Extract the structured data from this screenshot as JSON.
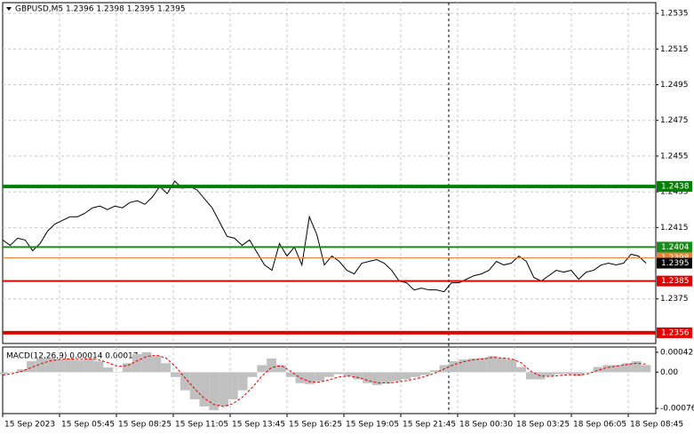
{
  "chart_data": [
    {
      "type": "line",
      "title": "GBPUSD,M5 1.2396 1.2398 1.2395 1.2395",
      "time_labels": [
        "15 Sep 2023",
        "15 Sep 05:45",
        "15 Sep 08:25",
        "15 Sep 11:05",
        "15 Sep 13:45",
        "15 Sep 16:25",
        "15 Sep 19:05",
        "15 Sep 21:45",
        "18 Sep 00:30",
        "18 Sep 03:25",
        "18 Sep 06:05",
        "18 Sep 08:45"
      ],
      "color": "#000000",
      "values": [
        1.2408,
        1.2405,
        1.2409,
        1.2408,
        1.2402,
        1.2406,
        1.2413,
        1.2417,
        1.2419,
        1.2421,
        1.2421,
        1.2423,
        1.2426,
        1.2427,
        1.2425,
        1.2427,
        1.2426,
        1.2429,
        1.243,
        1.2428,
        1.2432,
        1.2438,
        1.2434,
        1.2441,
        1.2437,
        1.2438,
        1.2436,
        1.2431,
        1.2426,
        1.2418,
        1.241,
        1.2409,
        1.2405,
        1.2408,
        1.2401,
        1.2394,
        1.2391,
        1.2406,
        1.2399,
        1.2404,
        1.2394,
        1.2421,
        1.2411,
        1.2394,
        1.2399,
        1.2396,
        1.2391,
        1.2389,
        1.2395,
        1.2396,
        1.2397,
        1.2395,
        1.2391,
        1.2385,
        1.2384,
        1.238,
        1.2381,
        1.238,
        1.238,
        1.2379,
        1.2384,
        1.2384,
        1.2386,
        1.2388,
        1.2389,
        1.2391,
        1.2396,
        1.2394,
        1.2395,
        1.2399,
        1.2396,
        1.2387,
        1.2385,
        1.2388,
        1.2391,
        1.239,
        1.2391,
        1.2386,
        1.239,
        1.2391,
        1.2394,
        1.2395,
        1.2394,
        1.2395,
        1.24,
        1.2399,
        1.2395
      ],
      "ylim": [
        1.235,
        1.2541
      ],
      "yticks": [
        1.2535,
        1.2515,
        1.2495,
        1.2475,
        1.2455,
        1.2435,
        1.2415,
        1.2375
      ],
      "grid": true,
      "levels": [
        {
          "value": 1.2438,
          "color": "#008000",
          "style": "bold"
        },
        {
          "value": 1.2404,
          "color": "#1a8a1a",
          "style": "normal"
        },
        {
          "value": 1.2398,
          "color": "#e8823a",
          "style": "thin"
        },
        {
          "value": 1.2385,
          "color": "#e00000",
          "style": "normal"
        },
        {
          "value": 1.2356,
          "color": "#e00000",
          "style": "bold"
        }
      ],
      "last": 1.2395
    },
    {
      "type": "macd",
      "title": "MACD(12,26,9) 0.00014 0.00017",
      "series": [
        {
          "name": "MACD",
          "color": "#c0c0c0",
          "values": [
            -4e-05,
            0,
            6e-05,
            0.00023,
            0.00029,
            0.0003,
            0.00027,
            0.00029,
            0.00025,
            0.00029,
            0.00023,
            0.0001,
            0,
            0.00019,
            0.00038,
            0.00042,
            0.00034,
            0.00019,
            -0.0001,
            -0.00038,
            -0.00057,
            -0.00072,
            -0.0008,
            -0.00072,
            -0.00057,
            -0.00038,
            -0.0001,
            0.00015,
            0.00029,
            0.00015,
            -0.0001,
            -0.00023,
            -0.00025,
            -0.00019,
            -0.0001,
            -4e-05,
            -8e-05,
            -0.00015,
            -0.00023,
            -0.00027,
            -0.00023,
            -0.00019,
            -0.00015,
            -0.0001,
            -6e-05,
            4e-05,
            0.00015,
            0.00023,
            0.00027,
            0.00029,
            0.0003,
            0.00034,
            0.0003,
            0.00027,
            0.00011,
            -0.00015,
            -0.00015,
            -8e-05,
            -4e-05,
            -4e-05,
            -8e-05,
            0,
            0.00011,
            0.00015,
            0.00015,
            0.00019,
            0.00023,
            0.00015
          ]
        },
        {
          "name": "Signal",
          "color": "#e00000",
          "values": [
            -6e-05,
            -3e-05,
            2e-05,
            0.0001,
            0.00018,
            0.00024,
            0.00027,
            0.00028,
            0.00027,
            0.00028,
            0.00026,
            0.0002,
            0.00012,
            0.00014,
            0.00024,
            0.00033,
            0.00036,
            0.0003,
            0.00012,
            -0.00012,
            -0.00035,
            -0.00055,
            -0.00068,
            -0.00072,
            -0.00066,
            -0.00052,
            -0.00032,
            -8e-05,
            0.0001,
            0.00014,
            2e-05,
            -0.00012,
            -0.0002,
            -0.00021,
            -0.00016,
            -0.0001,
            -8e-05,
            -0.00011,
            -0.00017,
            -0.00022,
            -0.00023,
            -0.00021,
            -0.00018,
            -0.00014,
            -9e-05,
            -2e-05,
            7e-05,
            0.00016,
            0.00022,
            0.00026,
            0.00028,
            0.00031,
            0.0003,
            0.00028,
            0.0002,
            2e-05,
            -8e-05,
            -9e-05,
            -7e-05,
            -5e-05,
            -6e-05,
            -3e-05,
            4e-05,
            0.0001,
            0.00013,
            0.00016,
            0.00019,
            0.00017
          ]
        }
      ],
      "ylim": [
        -0.00087,
        0.00053
      ],
      "yticks": [
        0.00042,
        {
          "value": 0,
          "label": "0.00"
        },
        -0.00076
      ]
    }
  ]
}
